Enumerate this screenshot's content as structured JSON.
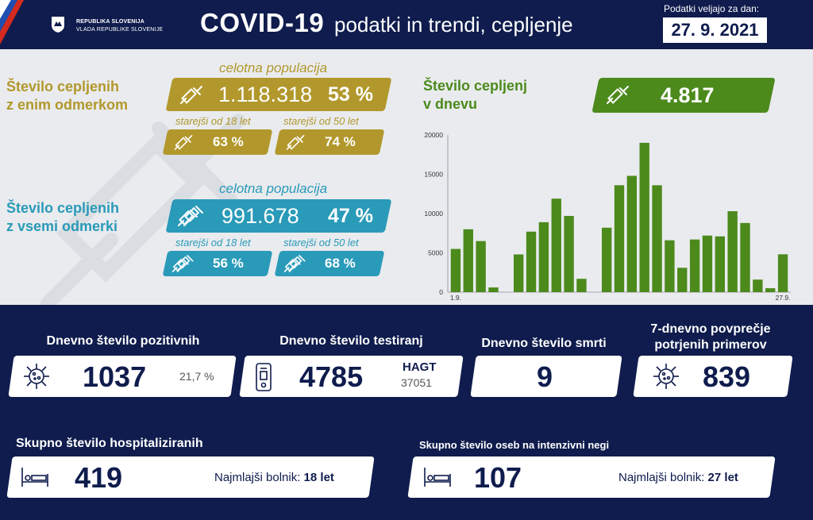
{
  "header": {
    "gov_line1": "REPUBLIKA SLOVENIJA",
    "gov_line2": "VLADA REPUBLIKE SLOVENIJE",
    "title": "COVID-19",
    "subtitle": "podatki in trendi, cepljenje",
    "date_label": "Podatki veljajo za dan:",
    "date": "27. 9. 2021"
  },
  "vaccination": {
    "one_dose": {
      "label_line1": "Število cepljenih",
      "label_line2": "z enim odmerkom",
      "population_label": "celotna populacija",
      "total": "1.118.318",
      "total_pct": "53 %",
      "over18_label": "starejši od 18 let",
      "over18_pct": "63 %",
      "over50_label": "starejši od 50 let",
      "over50_pct": "74 %"
    },
    "all_doses": {
      "label_line1": "Število cepljenih",
      "label_line2": "z vsemi odmerki",
      "population_label": "celotna populacija",
      "total": "991.678",
      "total_pct": "47 %",
      "over18_label": "starejši od 18 let",
      "over18_pct": "56 %",
      "over50_label": "starejši od 50 let",
      "over50_pct": "68 %"
    },
    "daily": {
      "label_line1": "Število cepljenj",
      "label_line2": "v dnevu",
      "value": "4.817"
    }
  },
  "chart_data": {
    "type": "bar",
    "title": "",
    "xlabel": "",
    "ylabel": "",
    "ylim": [
      0,
      20000
    ],
    "yticks": [
      0,
      5000,
      10000,
      15000,
      20000
    ],
    "x_first_label": "1.9.",
    "x_last_label": "27.9.",
    "categories": [
      "1.9.",
      "2.9.",
      "3.9.",
      "4.9.",
      "5.9.",
      "6.9.",
      "7.9.",
      "8.9.",
      "9.9.",
      "10.9.",
      "11.9.",
      "12.9.",
      "13.9.",
      "14.9.",
      "15.9.",
      "16.9.",
      "17.9.",
      "18.9.",
      "19.9.",
      "20.9.",
      "21.9.",
      "22.9.",
      "23.9.",
      "24.9.",
      "25.9.",
      "26.9.",
      "27.9."
    ],
    "values": [
      5500,
      8000,
      6500,
      600,
      0,
      4800,
      7700,
      8900,
      11900,
      9700,
      1700,
      0,
      8200,
      13600,
      14800,
      19000,
      13600,
      6600,
      3100,
      6700,
      7200,
      7100,
      10300,
      8800,
      1600,
      500,
      4817
    ],
    "color": "#4c8a1c"
  },
  "stats": {
    "positive": {
      "title": "Dnevno število pozitivnih",
      "value": "1037",
      "pct": "21,7 %",
      "icon": "virus-icon"
    },
    "tests": {
      "title": "Dnevno število testiranj",
      "value": "4785",
      "hagt_label": "HAGT",
      "hagt_value": "37051",
      "icon": "test-kit-icon"
    },
    "deaths": {
      "title": "Dnevno število smrti",
      "value": "9"
    },
    "avg7": {
      "title_line1": "7-dnevno povprečje",
      "title_line2": "potrjenih primerov",
      "value": "839",
      "icon": "virus-icon"
    },
    "hospital": {
      "title": "Skupno število hospitaliziranih",
      "value": "419",
      "youngest_label": "Najmlajši bolnik:",
      "youngest_value": "18 let",
      "icon": "bed-icon"
    },
    "icu": {
      "title": "Skupno število oseb na intenzivni negi",
      "value": "107",
      "youngest_label": "Najmlajši bolnik:",
      "youngest_value": "27 let",
      "icon": "bed-icon"
    }
  },
  "colors": {
    "navy": "#0f1c4d",
    "gold": "#b2982c",
    "teal": "#2a9ab9",
    "green": "#4c8a1c"
  }
}
